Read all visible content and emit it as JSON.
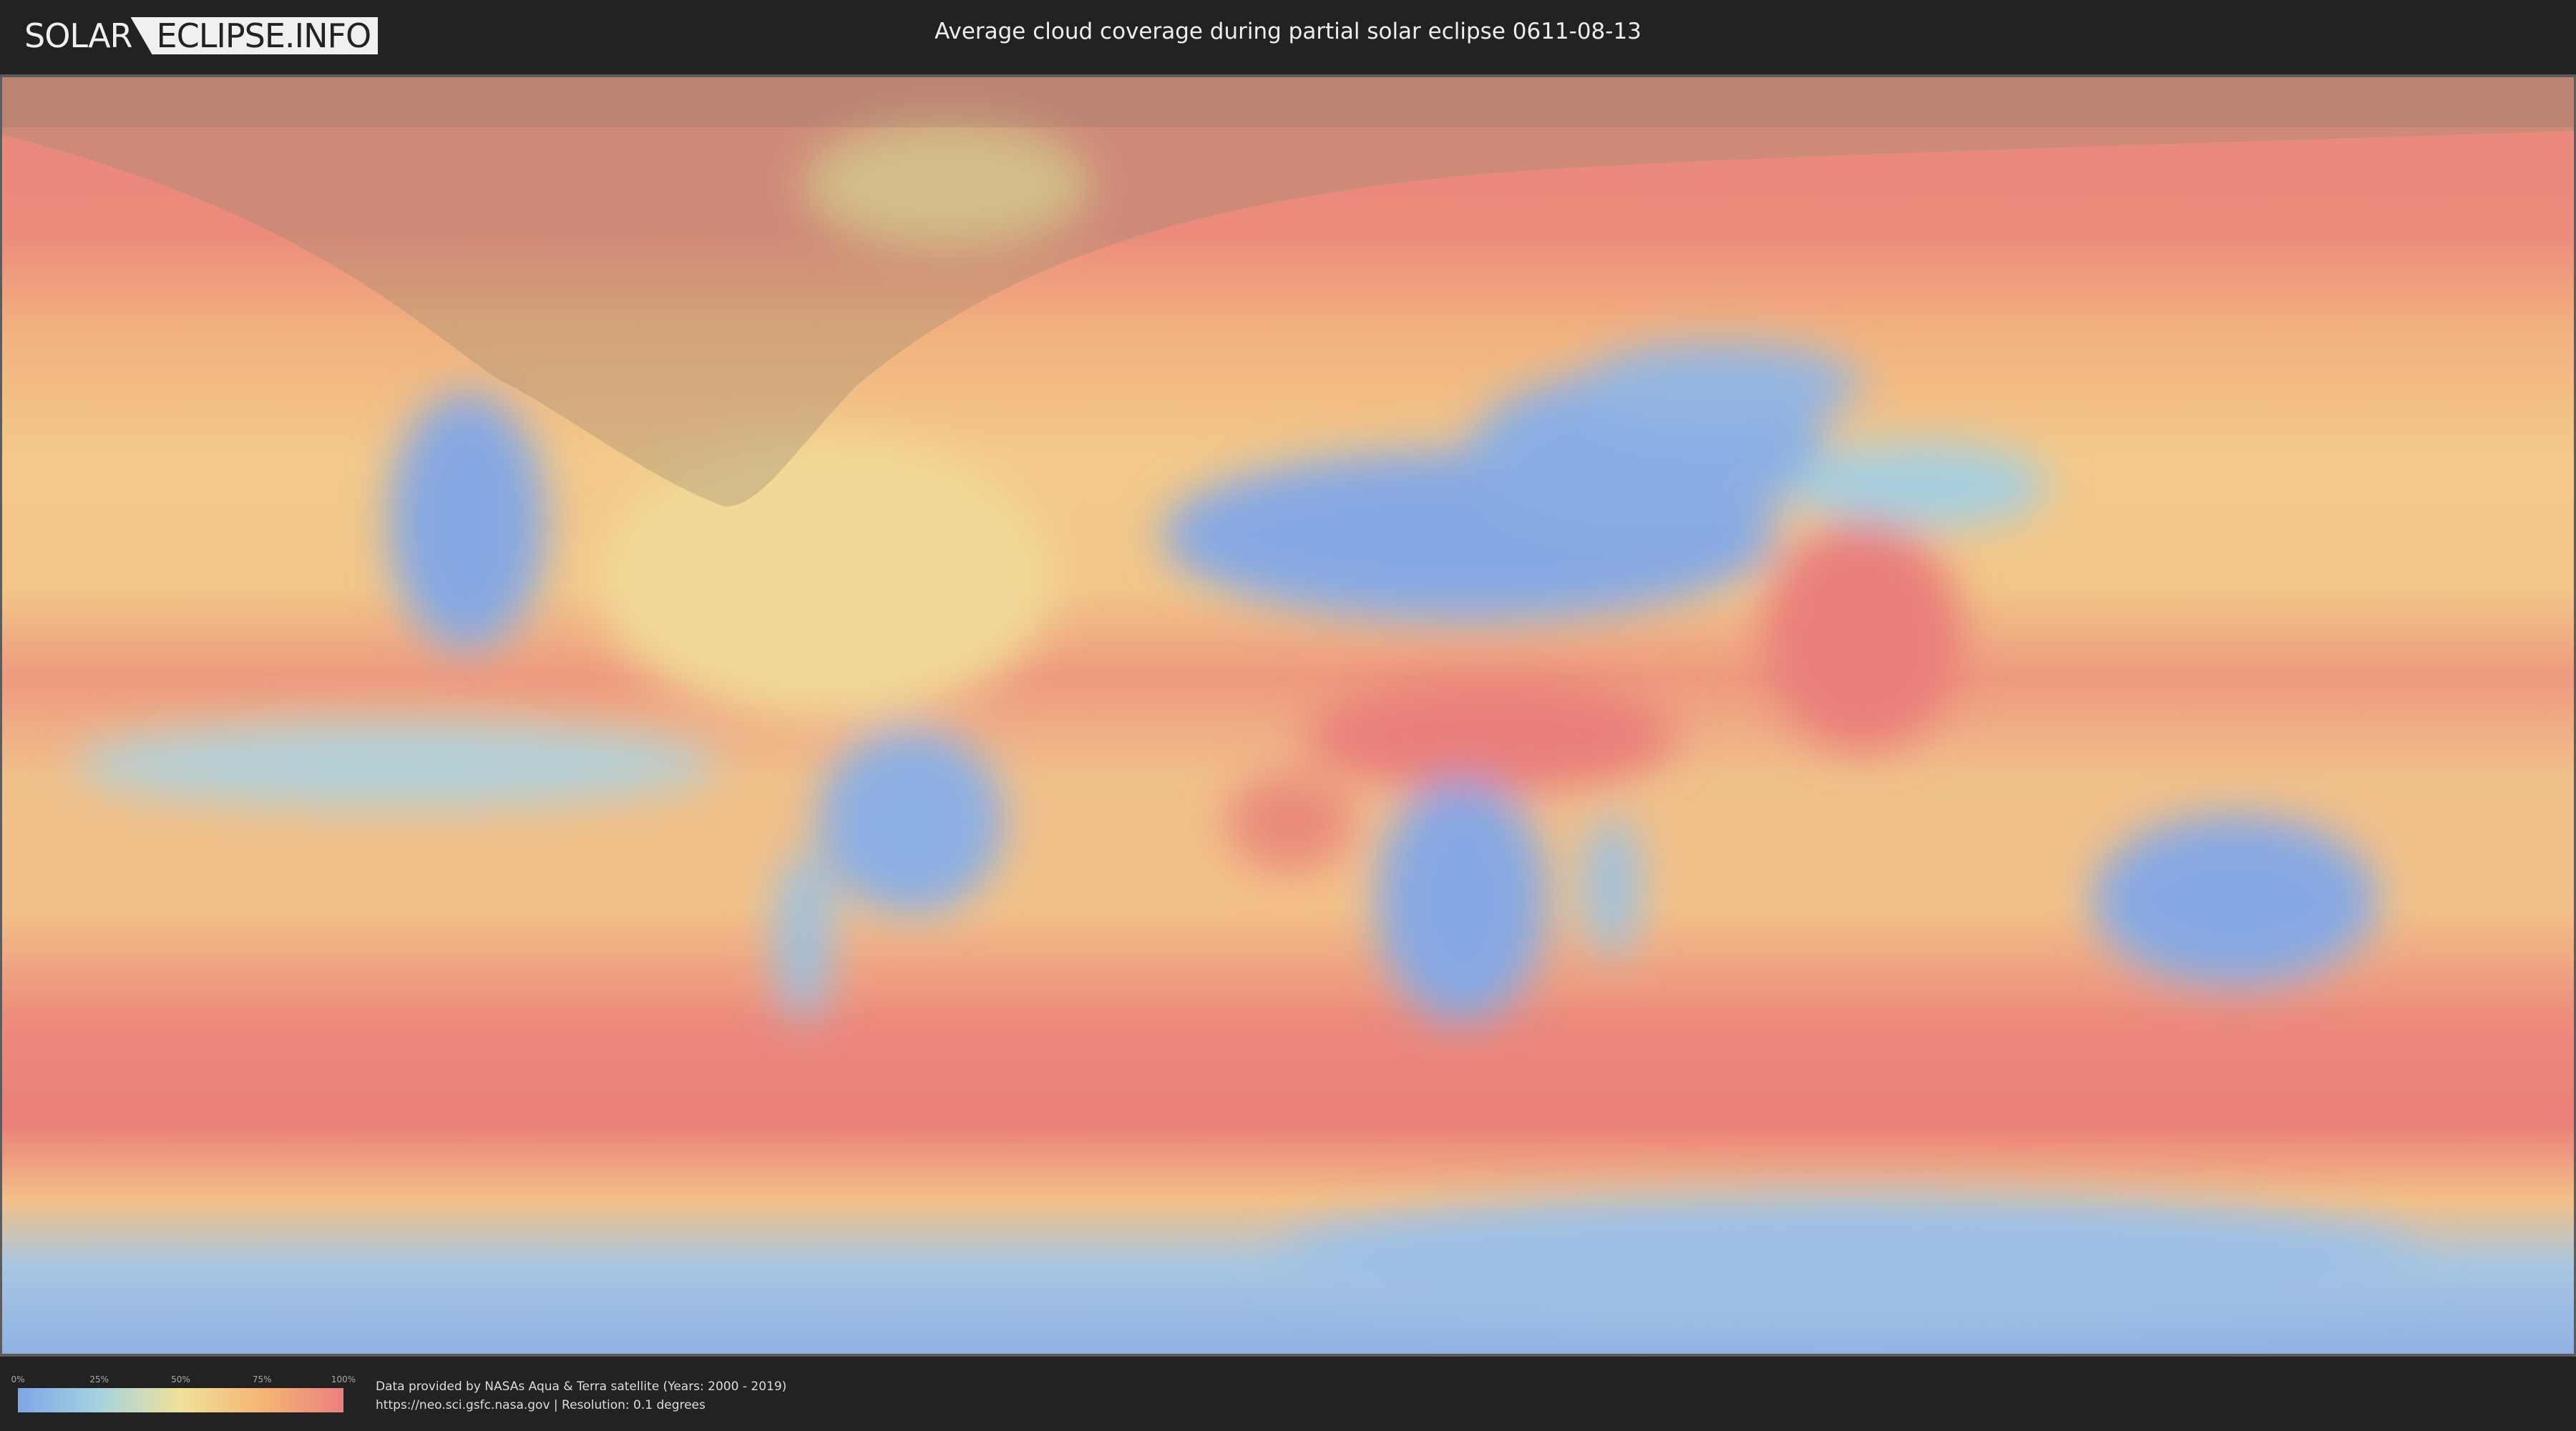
{
  "header": {
    "logo": {
      "part1": "SOLAR",
      "part2": "ECLIPSE.INFO"
    },
    "title": "Average cloud coverage during partial solar eclipse 0611-08-13"
  },
  "legend": {
    "ticks": [
      "0%",
      "25%",
      "50%",
      "75%",
      "100%"
    ],
    "colors": [
      "#7ea6e6",
      "#a6d3df",
      "#f0e19a",
      "#f4b673",
      "#ec7f7f"
    ]
  },
  "credits": {
    "line1": "Data provided by NASAs Aqua & Terra satellite (Years: 2000 - 2019)",
    "line2": "https://neo.sci.gsfc.nasa.gov | Resolution: 0.1 degrees"
  }
}
